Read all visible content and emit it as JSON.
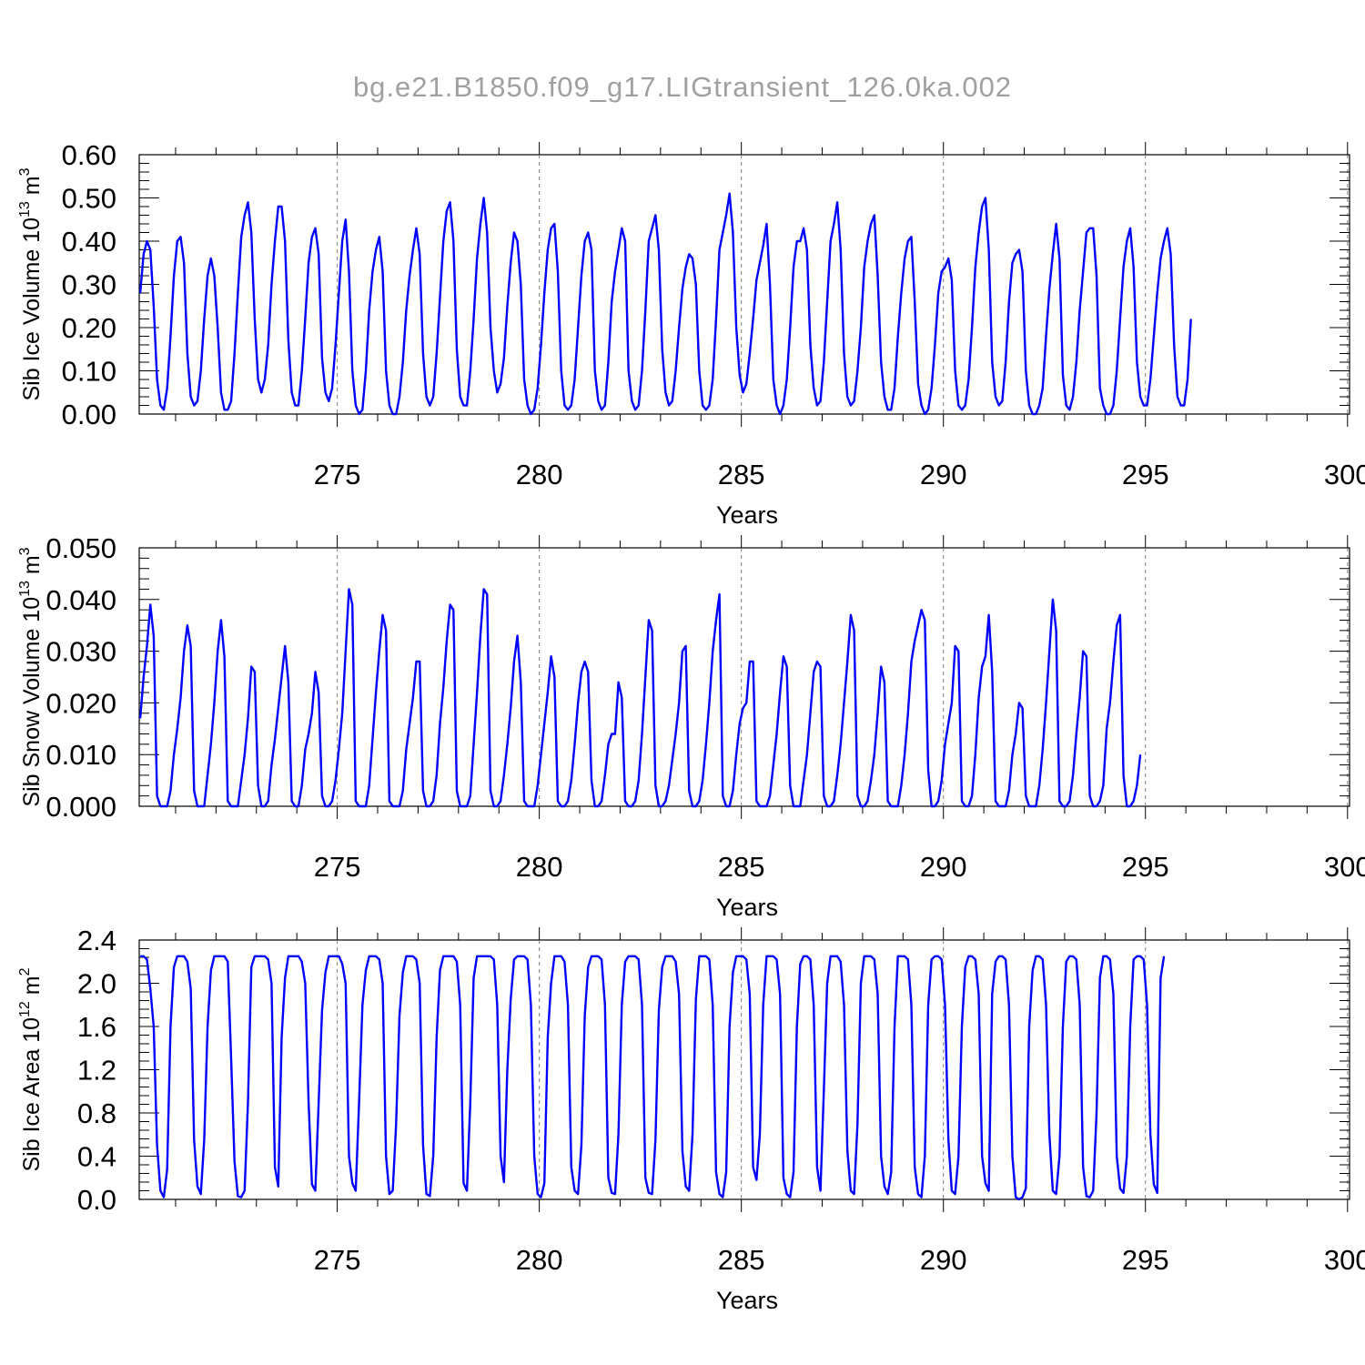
{
  "title": "bg.e21.B1850.f09_g17.LIGtransient_126.0ka.002",
  "colors": {
    "line": "#0000ff",
    "axis": "#000000",
    "grid": "#808080",
    "title": "#a0a0a0"
  },
  "chart_data": [
    {
      "type": "line",
      "ylabel": "Sib Ice Volume 10",
      "ylabel_exp": "13",
      "ylabel_unit": " m",
      "ylabel_unit_exp": "3",
      "xlabel": "Years",
      "xlim": [
        270.1,
        300.05
      ],
      "ylim": [
        0.0,
        0.6
      ],
      "yticks": [
        "0.00",
        "0.10",
        "0.20",
        "0.30",
        "0.40",
        "0.50",
        "0.60"
      ],
      "xticks": [
        "275",
        "280",
        "285",
        "290",
        "295",
        "300"
      ],
      "grid": "dashed vertical at every 5 years",
      "series": [
        {
          "x_start": 270.125,
          "x_step": 0.08333,
          "values": [
            0.28,
            0.37,
            0.4,
            0.38,
            0.25,
            0.08,
            0.02,
            0.01,
            0.06,
            0.18,
            0.32,
            0.4,
            0.41,
            0.35,
            0.14,
            0.04,
            0.02,
            0.03,
            0.1,
            0.22,
            0.32,
            0.36,
            0.32,
            0.2,
            0.05,
            0.01,
            0.01,
            0.03,
            0.14,
            0.28,
            0.41,
            0.46,
            0.49,
            0.42,
            0.22,
            0.08,
            0.05,
            0.08,
            0.16,
            0.3,
            0.4,
            0.48,
            0.48,
            0.4,
            0.17,
            0.05,
            0.02,
            0.02,
            0.1,
            0.22,
            0.35,
            0.41,
            0.43,
            0.37,
            0.13,
            0.05,
            0.03,
            0.06,
            0.16,
            0.28,
            0.4,
            0.45,
            0.33,
            0.1,
            0.02,
            0.0,
            0.01,
            0.1,
            0.24,
            0.33,
            0.38,
            0.41,
            0.33,
            0.1,
            0.02,
            0.0,
            0.0,
            0.04,
            0.12,
            0.24,
            0.32,
            0.38,
            0.43,
            0.37,
            0.14,
            0.04,
            0.02,
            0.04,
            0.14,
            0.27,
            0.4,
            0.47,
            0.49,
            0.4,
            0.15,
            0.04,
            0.02,
            0.02,
            0.1,
            0.22,
            0.36,
            0.44,
            0.5,
            0.42,
            0.2,
            0.1,
            0.05,
            0.07,
            0.13,
            0.25,
            0.35,
            0.42,
            0.4,
            0.3,
            0.08,
            0.02,
            0.0,
            0.01,
            0.06,
            0.16,
            0.28,
            0.38,
            0.43,
            0.44,
            0.33,
            0.1,
            0.02,
            0.01,
            0.02,
            0.08,
            0.2,
            0.32,
            0.4,
            0.42,
            0.38,
            0.1,
            0.03,
            0.01,
            0.02,
            0.12,
            0.26,
            0.33,
            0.38,
            0.43,
            0.4,
            0.1,
            0.03,
            0.01,
            0.02,
            0.1,
            0.24,
            0.4,
            0.43,
            0.46,
            0.38,
            0.15,
            0.05,
            0.02,
            0.03,
            0.1,
            0.2,
            0.29,
            0.34,
            0.37,
            0.36,
            0.3,
            0.1,
            0.02,
            0.01,
            0.02,
            0.08,
            0.22,
            0.38,
            0.42,
            0.46,
            0.51,
            0.42,
            0.2,
            0.09,
            0.05,
            0.07,
            0.14,
            0.22,
            0.31,
            0.35,
            0.39,
            0.44,
            0.3,
            0.08,
            0.02,
            0.0,
            0.02,
            0.08,
            0.2,
            0.34,
            0.4,
            0.4,
            0.43,
            0.38,
            0.16,
            0.06,
            0.02,
            0.03,
            0.12,
            0.26,
            0.4,
            0.44,
            0.49,
            0.38,
            0.14,
            0.04,
            0.02,
            0.03,
            0.1,
            0.2,
            0.34,
            0.4,
            0.44,
            0.46,
            0.32,
            0.12,
            0.04,
            0.01,
            0.01,
            0.06,
            0.18,
            0.28,
            0.36,
            0.4,
            0.41,
            0.26,
            0.07,
            0.02,
            0.0,
            0.01,
            0.06,
            0.16,
            0.28,
            0.33,
            0.34,
            0.36,
            0.31,
            0.1,
            0.02,
            0.01,
            0.02,
            0.08,
            0.2,
            0.34,
            0.42,
            0.48,
            0.5,
            0.38,
            0.12,
            0.04,
            0.02,
            0.03,
            0.12,
            0.26,
            0.35,
            0.37,
            0.38,
            0.33,
            0.1,
            0.02,
            0.0,
            0.0,
            0.02,
            0.06,
            0.18,
            0.29,
            0.37,
            0.44,
            0.36,
            0.09,
            0.02,
            0.01,
            0.04,
            0.12,
            0.24,
            0.33,
            0.42,
            0.43,
            0.43,
            0.32,
            0.06,
            0.02,
            0.0,
            0.0,
            0.02,
            0.1,
            0.22,
            0.34,
            0.4,
            0.43,
            0.34,
            0.12,
            0.04,
            0.02,
            0.02,
            0.08,
            0.18,
            0.28,
            0.36,
            0.4,
            0.43,
            0.37,
            0.16,
            0.04,
            0.02,
            0.02,
            0.08,
            0.22
          ]
        }
      ]
    },
    {
      "type": "line",
      "ylabel": "Sib Snow Volume 10",
      "ylabel_exp": "13",
      "ylabel_unit": " m",
      "ylabel_unit_exp": "3",
      "xlabel": "Years",
      "xlim": [
        270.1,
        300.05
      ],
      "ylim": [
        0.0,
        0.05
      ],
      "yticks": [
        "0.000",
        "0.010",
        "0.020",
        "0.030",
        "0.040",
        "0.050"
      ],
      "xticks": [
        "275",
        "280",
        "285",
        "290",
        "295",
        "300"
      ],
      "grid": "dashed vertical at every 5 years",
      "series": [
        {
          "x_start": 270.125,
          "x_step": 0.08333,
          "values": [
            0.017,
            0.025,
            0.031,
            0.039,
            0.033,
            0.002,
            0.0,
            0.0,
            0.0,
            0.003,
            0.01,
            0.015,
            0.021,
            0.03,
            0.035,
            0.031,
            0.003,
            0.0,
            0.0,
            0.0,
            0.006,
            0.012,
            0.02,
            0.03,
            0.036,
            0.029,
            0.001,
            0.0,
            0.0,
            0.0,
            0.005,
            0.01,
            0.017,
            0.027,
            0.026,
            0.004,
            0.0,
            0.0,
            0.001,
            0.008,
            0.013,
            0.019,
            0.025,
            0.031,
            0.024,
            0.001,
            0.0,
            0.0,
            0.004,
            0.011,
            0.014,
            0.018,
            0.026,
            0.022,
            0.002,
            0.0,
            0.0,
            0.001,
            0.005,
            0.011,
            0.018,
            0.03,
            0.042,
            0.039,
            0.001,
            0.0,
            0.0,
            0.0,
            0.004,
            0.013,
            0.022,
            0.03,
            0.037,
            0.034,
            0.001,
            0.0,
            0.0,
            0.0,
            0.003,
            0.011,
            0.016,
            0.021,
            0.028,
            0.028,
            0.003,
            0.0,
            0.0,
            0.001,
            0.006,
            0.016,
            0.023,
            0.032,
            0.039,
            0.038,
            0.003,
            0.0,
            0.0,
            0.0,
            0.002,
            0.012,
            0.022,
            0.033,
            0.042,
            0.041,
            0.003,
            0.0,
            0.0,
            0.001,
            0.006,
            0.012,
            0.019,
            0.028,
            0.033,
            0.024,
            0.001,
            0.0,
            0.0,
            0.0,
            0.004,
            0.01,
            0.016,
            0.022,
            0.029,
            0.025,
            0.001,
            0.0,
            0.0,
            0.001,
            0.005,
            0.012,
            0.02,
            0.026,
            0.028,
            0.026,
            0.005,
            0.0,
            0.0,
            0.001,
            0.006,
            0.012,
            0.014,
            0.014,
            0.024,
            0.021,
            0.001,
            0.0,
            0.0,
            0.001,
            0.005,
            0.014,
            0.025,
            0.036,
            0.034,
            0.004,
            0.0,
            0.0,
            0.001,
            0.004,
            0.009,
            0.014,
            0.02,
            0.03,
            0.031,
            0.003,
            0.0,
            0.0,
            0.001,
            0.005,
            0.012,
            0.02,
            0.03,
            0.036,
            0.041,
            0.002,
            0.0,
            0.0,
            0.003,
            0.01,
            0.016,
            0.019,
            0.02,
            0.028,
            0.028,
            0.001,
            0.0,
            0.0,
            0.0,
            0.002,
            0.008,
            0.014,
            0.022,
            0.029,
            0.027,
            0.004,
            0.0,
            0.0,
            0.0,
            0.005,
            0.01,
            0.018,
            0.026,
            0.028,
            0.027,
            0.002,
            0.0,
            0.0,
            0.001,
            0.006,
            0.012,
            0.02,
            0.028,
            0.037,
            0.034,
            0.002,
            0.0,
            0.0,
            0.001,
            0.005,
            0.01,
            0.018,
            0.027,
            0.024,
            0.001,
            0.0,
            0.0,
            0.0,
            0.004,
            0.01,
            0.018,
            0.028,
            0.032,
            0.035,
            0.038,
            0.036,
            0.007,
            0.0,
            0.0,
            0.001,
            0.005,
            0.012,
            0.016,
            0.02,
            0.031,
            0.03,
            0.001,
            0.0,
            0.0,
            0.002,
            0.01,
            0.021,
            0.027,
            0.029,
            0.037,
            0.026,
            0.001,
            0.0,
            0.0,
            0.0,
            0.003,
            0.01,
            0.014,
            0.02,
            0.019,
            0.002,
            0.0,
            0.0,
            0.0,
            0.004,
            0.011,
            0.02,
            0.03,
            0.04,
            0.034,
            0.001,
            0.0,
            0.0,
            0.001,
            0.006,
            0.014,
            0.021,
            0.03,
            0.029,
            0.002,
            0.0,
            0.0,
            0.001,
            0.004,
            0.015,
            0.02,
            0.028,
            0.035,
            0.037,
            0.006,
            0.0,
            0.0,
            0.001,
            0.004,
            0.01
          ]
        }
      ]
    },
    {
      "type": "line",
      "ylabel": "Sib Ice Area 10",
      "ylabel_exp": "12",
      "ylabel_unit": " m",
      "ylabel_unit_exp": "2",
      "xlabel": "Years",
      "xlim": [
        270.1,
        300.05
      ],
      "ylim": [
        0.0,
        2.4
      ],
      "yticks": [
        "0.0",
        "0.4",
        "0.8",
        "1.2",
        "1.6",
        "2.0",
        "2.4"
      ],
      "xticks": [
        "275",
        "280",
        "285",
        "290",
        "295",
        "300"
      ],
      "grid": "dashed vertical at every 5 years",
      "series": [
        {
          "x_start": 270.125,
          "x_step": 0.08333,
          "values": [
            2.25,
            2.25,
            2.22,
            1.95,
            1.6,
            0.5,
            0.08,
            0.02,
            0.28,
            1.6,
            2.15,
            2.25,
            2.25,
            2.25,
            2.2,
            1.95,
            0.55,
            0.12,
            0.05,
            0.55,
            1.6,
            2.12,
            2.25,
            2.25,
            2.25,
            2.25,
            2.2,
            1.3,
            0.35,
            0.03,
            0.02,
            0.08,
            0.9,
            2.15,
            2.25,
            2.25,
            2.25,
            2.25,
            2.22,
            2.0,
            0.3,
            0.12,
            1.5,
            2.05,
            2.25,
            2.25,
            2.25,
            2.25,
            2.2,
            2.0,
            0.9,
            0.14,
            0.08,
            0.9,
            1.75,
            2.1,
            2.25,
            2.25,
            2.25,
            2.25,
            2.18,
            2.0,
            0.4,
            0.15,
            0.08,
            0.9,
            1.8,
            2.12,
            2.25,
            2.25,
            2.25,
            2.22,
            2.0,
            0.4,
            0.05,
            0.08,
            0.7,
            1.7,
            2.1,
            2.25,
            2.25,
            2.25,
            2.22,
            2.0,
            0.5,
            0.05,
            0.03,
            0.4,
            1.5,
            2.12,
            2.25,
            2.25,
            2.25,
            2.25,
            2.2,
            1.8,
            0.15,
            0.08,
            0.9,
            2.05,
            2.25,
            2.25,
            2.25,
            2.25,
            2.25,
            2.22,
            1.8,
            0.4,
            0.16,
            1.2,
            1.85,
            2.22,
            2.25,
            2.25,
            2.25,
            2.22,
            1.8,
            0.4,
            0.05,
            0.02,
            0.15,
            1.5,
            2.0,
            2.25,
            2.25,
            2.25,
            2.2,
            1.8,
            0.3,
            0.08,
            0.05,
            0.5,
            1.7,
            2.15,
            2.25,
            2.25,
            2.25,
            2.22,
            1.8,
            0.2,
            0.06,
            0.05,
            0.6,
            1.8,
            2.2,
            2.25,
            2.25,
            2.25,
            2.22,
            1.8,
            0.2,
            0.06,
            0.05,
            0.55,
            1.75,
            2.15,
            2.25,
            2.25,
            2.25,
            2.2,
            1.9,
            0.45,
            0.12,
            0.08,
            0.6,
            1.85,
            2.25,
            2.25,
            2.25,
            2.22,
            1.8,
            0.25,
            0.05,
            0.02,
            0.25,
            1.6,
            2.1,
            2.25,
            2.25,
            2.25,
            2.22,
            1.9,
            0.3,
            0.18,
            0.6,
            1.8,
            2.25,
            2.25,
            2.25,
            2.22,
            1.9,
            0.2,
            0.05,
            0.02,
            0.25,
            1.6,
            2.18,
            2.25,
            2.25,
            2.22,
            1.8,
            0.3,
            0.08,
            1.0,
            2.0,
            2.25,
            2.25,
            2.25,
            2.2,
            1.8,
            0.45,
            0.08,
            0.05,
            0.7,
            2.0,
            2.25,
            2.25,
            2.25,
            2.22,
            1.9,
            0.4,
            0.12,
            0.05,
            0.25,
            1.6,
            2.25,
            2.25,
            2.25,
            2.22,
            1.8,
            0.3,
            0.05,
            0.02,
            0.4,
            1.8,
            2.22,
            2.25,
            2.25,
            2.22,
            1.8,
            0.55,
            0.08,
            0.05,
            0.4,
            1.6,
            2.15,
            2.25,
            2.25,
            2.22,
            1.9,
            0.4,
            0.15,
            0.08,
            1.9,
            2.2,
            2.25,
            2.25,
            2.22,
            1.8,
            0.4,
            0.02,
            0.0,
            0.02,
            0.1,
            1.6,
            2.12,
            2.25,
            2.25,
            2.22,
            1.8,
            0.6,
            0.08,
            0.05,
            0.4,
            1.6,
            2.2,
            2.25,
            2.25,
            2.22,
            1.8,
            0.3,
            0.03,
            0.02,
            0.08,
            0.8,
            2.05,
            2.25,
            2.25,
            2.22,
            1.9,
            0.4,
            0.1,
            0.06,
            0.4,
            1.6,
            2.22,
            2.25,
            2.25,
            2.22,
            1.8,
            0.6,
            0.14,
            0.06,
            2.05,
            2.25
          ]
        }
      ]
    }
  ]
}
